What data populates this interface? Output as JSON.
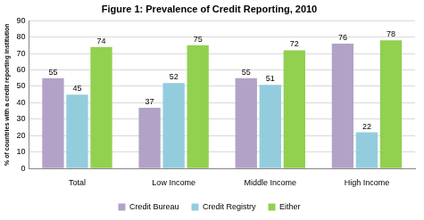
{
  "chart_data": {
    "type": "bar",
    "title": "Figure 1: Prevalence of Credit Reporting, 2010",
    "y_label": "% of countries with a credit reporting institution",
    "categories": [
      "Total",
      "Low Income",
      "Middle Income",
      "High Income"
    ],
    "series": [
      {
        "name": "Credit Bureau",
        "color": "#b3a2c7",
        "values": [
          55,
          37,
          55,
          76
        ]
      },
      {
        "name": "Credit Registry",
        "color": "#93cddd",
        "values": [
          45,
          52,
          51,
          22
        ]
      },
      {
        "name": "Either",
        "color": "#92d050",
        "values": [
          74,
          75,
          72,
          78
        ]
      }
    ],
    "ylim": [
      0,
      90
    ],
    "yticks": [
      0,
      10,
      20,
      30,
      40,
      50,
      60,
      70,
      80,
      90
    ],
    "grid": true,
    "legend": "bottom",
    "data_labels": true
  }
}
